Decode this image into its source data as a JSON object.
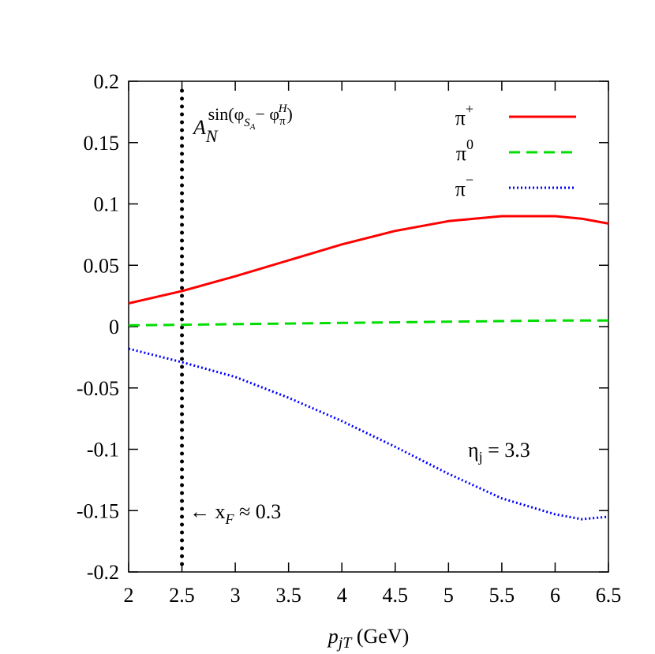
{
  "chart_data": {
    "type": "line",
    "x_label": {
      "main": "p",
      "sub": "jT",
      "unit": " (GeV)"
    },
    "x": [
      2,
      2.5,
      3,
      3.5,
      4,
      4.5,
      5,
      5.5,
      6,
      6.25,
      6.5
    ],
    "series": [
      {
        "name": {
          "base": "π",
          "sup": "+"
        },
        "color": "#ff0000",
        "dash": "solid",
        "values": [
          0.019,
          0.029,
          0.041,
          0.054,
          0.067,
          0.078,
          0.086,
          0.09,
          0.09,
          0.088,
          0.084
        ]
      },
      {
        "name": {
          "base": "π",
          "sup": "0"
        },
        "color": "#00dd00",
        "dash": "dashed",
        "values": [
          0.001,
          0.0015,
          0.002,
          0.0025,
          0.003,
          0.0035,
          0.004,
          0.0045,
          0.005,
          0.005,
          0.005
        ]
      },
      {
        "name": {
          "base": "π",
          "sup": "−"
        },
        "color": "#0000ff",
        "dash": "dotted",
        "values": [
          -0.018,
          -0.029,
          -0.041,
          -0.058,
          -0.077,
          -0.098,
          -0.12,
          -0.14,
          -0.153,
          -0.157,
          -0.155
        ]
      }
    ],
    "xlim": [
      2,
      6.5
    ],
    "xticks": [
      2,
      2.5,
      3,
      3.5,
      4,
      4.5,
      5,
      5.5,
      6,
      6.5
    ],
    "ylim": [
      -0.2,
      0.2
    ],
    "yticks": [
      -0.2,
      -0.15,
      -0.1,
      -0.05,
      0,
      0.05,
      0.1,
      0.15,
      0.2
    ],
    "vline_x": 2.5,
    "annotations": {
      "asymmetry": [
        "A",
        "N",
        "sin(φ",
        "S",
        "A",
        "− φ",
        "π",
        "H",
        ")"
      ],
      "xf": [
        "← x",
        "F",
        " ≈ 0.3"
      ],
      "eta": [
        "η",
        "j",
        " = 3.3"
      ]
    },
    "legend": "upper right"
  }
}
